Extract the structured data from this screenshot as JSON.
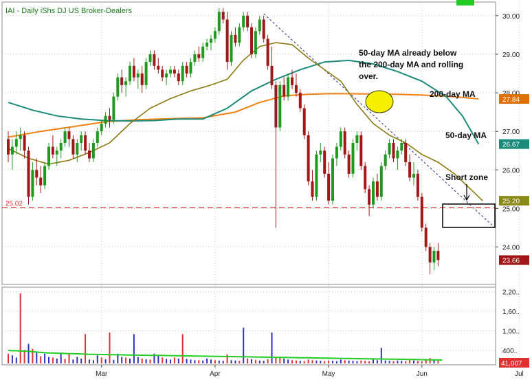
{
  "title": "IAI - Daily  iShs DJ US Broker-Dealers",
  "chart_data": {
    "type": "candlestick",
    "price_axis": {
      "ylim": [
        23.1,
        30.3
      ],
      "ticks": [
        "30.00",
        "29.00",
        "28.00",
        "27.00",
        "26.00",
        "25.00",
        "24.00"
      ],
      "tick_values": [
        30,
        29,
        28,
        27,
        26,
        25,
        24
      ]
    },
    "volume_axis": {
      "ylim": [
        0,
        2300000
      ],
      "ticks": [
        "2,20..",
        "1,60..",
        "1,00..",
        "400.."
      ],
      "tick_values": [
        2200000,
        1600000,
        1000000,
        400000
      ]
    },
    "x_months": [
      "Mar",
      "Apr",
      "May",
      "Jun",
      "Jul"
    ],
    "x_month_bar_index": [
      23,
      51,
      79,
      102,
      126
    ],
    "level_line": {
      "label": "25.02",
      "value": 25.02,
      "color": "#e03030"
    },
    "price_badges": [
      {
        "label": "27.84",
        "value": 27.84,
        "color": "#e07000"
      },
      {
        "label": "26.67",
        "value": 26.67,
        "color": "#1a8a7a"
      },
      {
        "label": "25.20",
        "value": 25.2,
        "color": "#8a8a1a"
      },
      {
        "label": "23.66",
        "value": 23.66,
        "color": "#a01818"
      }
    ],
    "volume_badge": {
      "label": "41,007",
      "color": "#e03030"
    },
    "annotations": {
      "note_lines": [
        "50-day MA already below",
        "the 200-day MA and rolling",
        "over."
      ],
      "ma200_label": "200-day MA",
      "ma50_label": "50-day MA",
      "short_zone_label": "Short zone"
    },
    "candles": [
      [
        26.8,
        27.0,
        26.2,
        26.4
      ],
      [
        26.4,
        26.8,
        26.0,
        26.6
      ],
      [
        26.6,
        27.0,
        26.4,
        26.8
      ],
      [
        26.8,
        27.1,
        26.5,
        26.9
      ],
      [
        26.9,
        27.0,
        26.3,
        26.5
      ],
      [
        26.5,
        26.6,
        25.1,
        25.3
      ],
      [
        25.3,
        26.2,
        25.2,
        26.0
      ],
      [
        26.0,
        26.3,
        25.6,
        25.8
      ],
      [
        25.8,
        26.1,
        25.4,
        25.6
      ],
      [
        25.6,
        26.2,
        25.5,
        26.1
      ],
      [
        26.1,
        26.7,
        26.0,
        26.6
      ],
      [
        26.6,
        26.9,
        26.3,
        26.4
      ],
      [
        26.4,
        26.6,
        26.1,
        26.5
      ],
      [
        26.5,
        26.8,
        26.3,
        26.7
      ],
      [
        26.7,
        27.1,
        26.6,
        27.0
      ],
      [
        27.0,
        27.1,
        26.6,
        26.8
      ],
      [
        26.8,
        26.9,
        26.3,
        26.4
      ],
      [
        26.4,
        26.8,
        26.2,
        26.7
      ],
      [
        26.7,
        27.0,
        26.5,
        26.9
      ],
      [
        26.9,
        27.0,
        26.4,
        26.5
      ],
      [
        26.5,
        26.7,
        26.2,
        26.3
      ],
      [
        26.3,
        26.8,
        26.2,
        26.7
      ],
      [
        26.7,
        27.1,
        26.6,
        27.0
      ],
      [
        27.0,
        27.3,
        26.9,
        27.2
      ],
      [
        27.2,
        27.5,
        27.1,
        27.4
      ],
      [
        27.4,
        27.6,
        27.1,
        27.3
      ],
      [
        27.3,
        28.0,
        27.2,
        27.9
      ],
      [
        27.9,
        28.5,
        27.8,
        28.4
      ],
      [
        28.4,
        28.6,
        28.0,
        28.2
      ],
      [
        28.2,
        28.4,
        27.9,
        28.3
      ],
      [
        28.3,
        28.8,
        28.2,
        28.7
      ],
      [
        28.7,
        28.9,
        28.3,
        28.4
      ],
      [
        28.4,
        28.6,
        28.1,
        28.5
      ],
      [
        28.5,
        28.7,
        28.0,
        28.2
      ],
      [
        28.2,
        28.9,
        28.1,
        28.8
      ],
      [
        28.8,
        29.1,
        28.7,
        29.0
      ],
      [
        29.0,
        29.1,
        28.6,
        28.7
      ],
      [
        28.7,
        28.9,
        28.5,
        28.6
      ],
      [
        28.6,
        28.7,
        28.3,
        28.4
      ],
      [
        28.4,
        28.6,
        28.2,
        28.5
      ],
      [
        28.5,
        28.7,
        28.4,
        28.6
      ],
      [
        28.6,
        28.7,
        28.4,
        28.5
      ],
      [
        28.5,
        28.6,
        28.2,
        28.3
      ],
      [
        28.3,
        28.8,
        28.2,
        28.7
      ],
      [
        28.7,
        28.8,
        28.4,
        28.5
      ],
      [
        28.5,
        28.9,
        28.4,
        28.8
      ],
      [
        28.8,
        29.1,
        28.7,
        29.0
      ],
      [
        29.0,
        29.2,
        28.8,
        28.9
      ],
      [
        28.9,
        29.3,
        28.8,
        29.2
      ],
      [
        29.2,
        29.4,
        29.1,
        29.3
      ],
      [
        29.3,
        29.5,
        29.1,
        29.4
      ],
      [
        29.4,
        29.7,
        29.3,
        29.6
      ],
      [
        29.6,
        30.2,
        29.5,
        30.1
      ],
      [
        30.1,
        30.2,
        29.8,
        29.9
      ],
      [
        29.9,
        30.1,
        28.6,
        28.8
      ],
      [
        28.8,
        29.6,
        28.7,
        29.5
      ],
      [
        29.5,
        29.7,
        29.2,
        29.3
      ],
      [
        29.3,
        29.8,
        29.2,
        29.7
      ],
      [
        29.7,
        30.1,
        29.6,
        30.0
      ],
      [
        30.0,
        30.1,
        29.6,
        29.7
      ],
      [
        29.7,
        29.8,
        28.9,
        29.0
      ],
      [
        29.0,
        29.7,
        28.9,
        29.6
      ],
      [
        29.6,
        30.0,
        29.5,
        29.9
      ],
      [
        29.9,
        30.0,
        29.3,
        29.4
      ],
      [
        29.4,
        29.5,
        28.6,
        28.7
      ],
      [
        28.7,
        29.2,
        28.1,
        28.2
      ],
      [
        28.2,
        28.3,
        24.5,
        27.1
      ],
      [
        27.1,
        28.3,
        27.0,
        28.2
      ],
      [
        28.2,
        28.4,
        27.8,
        27.9
      ],
      [
        27.9,
        28.5,
        27.8,
        28.4
      ],
      [
        28.4,
        28.6,
        28.1,
        28.2
      ],
      [
        28.2,
        28.5,
        27.9,
        28.0
      ],
      [
        28.0,
        28.1,
        27.5,
        27.6
      ],
      [
        27.6,
        27.7,
        26.8,
        26.9
      ],
      [
        26.9,
        27.0,
        25.6,
        25.7
      ],
      [
        25.7,
        26.0,
        25.2,
        25.3
      ],
      [
        25.3,
        26.5,
        25.2,
        26.4
      ],
      [
        26.4,
        26.7,
        26.2,
        26.5
      ],
      [
        26.5,
        26.6,
        25.8,
        25.9
      ],
      [
        25.9,
        26.2,
        25.1,
        25.2
      ],
      [
        25.2,
        26.4,
        25.1,
        26.3
      ],
      [
        26.3,
        26.7,
        26.1,
        26.6
      ],
      [
        26.6,
        27.1,
        26.5,
        27.0
      ],
      [
        27.0,
        27.1,
        26.3,
        26.4
      ],
      [
        26.4,
        26.5,
        25.8,
        25.9
      ],
      [
        25.9,
        26.8,
        25.8,
        26.7
      ],
      [
        26.7,
        27.0,
        26.5,
        26.9
      ],
      [
        26.9,
        27.0,
        26.0,
        26.1
      ],
      [
        26.1,
        26.2,
        25.4,
        25.5
      ],
      [
        25.5,
        25.6,
        24.8,
        25.1
      ],
      [
        25.1,
        25.8,
        25.0,
        25.7
      ],
      [
        25.7,
        25.9,
        25.2,
        25.3
      ],
      [
        25.3,
        26.2,
        25.2,
        26.1
      ],
      [
        26.1,
        26.5,
        26.0,
        26.4
      ],
      [
        26.4,
        26.8,
        26.3,
        26.7
      ],
      [
        26.7,
        26.8,
        26.2,
        26.3
      ],
      [
        26.3,
        26.6,
        26.0,
        26.5
      ],
      [
        26.5,
        26.8,
        26.4,
        26.7
      ],
      [
        26.7,
        26.8,
        26.1,
        26.2
      ],
      [
        26.2,
        26.4,
        25.7,
        25.8
      ],
      [
        25.8,
        26.2,
        25.6,
        25.9
      ],
      [
        25.9,
        26.0,
        25.2,
        25.3
      ],
      [
        25.3,
        25.4,
        24.4,
        24.5
      ],
      [
        24.5,
        24.6,
        23.9,
        24.0
      ],
      [
        24.0,
        24.1,
        23.3,
        23.6
      ],
      [
        23.6,
        24.0,
        23.4,
        23.9
      ],
      [
        23.9,
        24.1,
        23.5,
        23.66
      ]
    ],
    "volume": [
      [
        300000,
        "#e03030"
      ],
      [
        250000,
        "#3030c0"
      ],
      [
        180000,
        "#3030c0"
      ],
      [
        2150000,
        "#e03030"
      ],
      [
        420000,
        "#e03030"
      ],
      [
        600000,
        "#3030c0"
      ],
      [
        450000,
        "#e03030"
      ],
      [
        350000,
        "#3030c0"
      ],
      [
        220000,
        "#e03030"
      ],
      [
        300000,
        "#3030c0"
      ],
      [
        200000,
        "#3030c0"
      ],
      [
        180000,
        "#e03030"
      ],
      [
        150000,
        "#3030c0"
      ],
      [
        330000,
        "#3030c0"
      ],
      [
        140000,
        "#e03030"
      ],
      [
        300000,
        "#e03030"
      ],
      [
        120000,
        "#3030c0"
      ],
      [
        200000,
        "#3030c0"
      ],
      [
        150000,
        "#3030c0"
      ],
      [
        900000,
        "#e03030"
      ],
      [
        120000,
        "#3030c0"
      ],
      [
        100000,
        "#3030c0"
      ],
      [
        250000,
        "#3030c0"
      ],
      [
        180000,
        "#e03030"
      ],
      [
        130000,
        "#3030c0"
      ],
      [
        950000,
        "#e03030"
      ],
      [
        110000,
        "#3030c0"
      ],
      [
        300000,
        "#3030c0"
      ],
      [
        200000,
        "#3030c0"
      ],
      [
        180000,
        "#e03030"
      ],
      [
        150000,
        "#3030c0"
      ],
      [
        900000,
        "#3030c0"
      ],
      [
        200000,
        "#3030c0"
      ],
      [
        150000,
        "#e03030"
      ],
      [
        130000,
        "#3030c0"
      ],
      [
        120000,
        "#e03030"
      ],
      [
        300000,
        "#3030c0"
      ],
      [
        250000,
        "#3030c0"
      ],
      [
        180000,
        "#e03030"
      ],
      [
        140000,
        "#3030c0"
      ],
      [
        120000,
        "#3030c0"
      ],
      [
        180000,
        "#e03030"
      ],
      [
        150000,
        "#3030c0"
      ],
      [
        900000,
        "#e03030"
      ],
      [
        140000,
        "#3030c0"
      ],
      [
        120000,
        "#3030c0"
      ],
      [
        100000,
        "#3030c0"
      ],
      [
        100000,
        "#e03030"
      ],
      [
        90000,
        "#3030c0"
      ],
      [
        150000,
        "#3030c0"
      ],
      [
        120000,
        "#3030c0"
      ],
      [
        100000,
        "#e03030"
      ],
      [
        90000,
        "#3030c0"
      ],
      [
        80000,
        "#3030c0"
      ],
      [
        280000,
        "#e03030"
      ],
      [
        100000,
        "#3030c0"
      ],
      [
        90000,
        "#3030c0"
      ],
      [
        80000,
        "#e03030"
      ],
      [
        1100000,
        "#3030c0"
      ],
      [
        150000,
        "#e03030"
      ],
      [
        130000,
        "#3030c0"
      ],
      [
        110000,
        "#e03030"
      ],
      [
        90000,
        "#3030c0"
      ],
      [
        80000,
        "#3030c0"
      ],
      [
        130000,
        "#e03030"
      ],
      [
        950000,
        "#3030c0"
      ],
      [
        200000,
        "#e03030"
      ],
      [
        180000,
        "#e03030"
      ],
      [
        150000,
        "#3030c0"
      ],
      [
        120000,
        "#3030c0"
      ],
      [
        100000,
        "#e03030"
      ],
      [
        90000,
        "#e03030"
      ],
      [
        80000,
        "#3030c0"
      ],
      [
        70000,
        "#e03030"
      ],
      [
        120000,
        "#e03030"
      ],
      [
        100000,
        "#e03030"
      ],
      [
        90000,
        "#3030c0"
      ],
      [
        80000,
        "#3030c0"
      ],
      [
        70000,
        "#e03030"
      ],
      [
        90000,
        "#e03030"
      ],
      [
        80000,
        "#3030c0"
      ],
      [
        70000,
        "#3030c0"
      ],
      [
        120000,
        "#3030c0"
      ],
      [
        100000,
        "#e03030"
      ],
      [
        90000,
        "#3030c0"
      ],
      [
        80000,
        "#3030c0"
      ],
      [
        70000,
        "#3030c0"
      ],
      [
        90000,
        "#e03030"
      ],
      [
        80000,
        "#e03030"
      ],
      [
        70000,
        "#e03030"
      ],
      [
        120000,
        "#3030c0"
      ],
      [
        100000,
        "#3030c0"
      ],
      [
        480000,
        "#3030c0"
      ],
      [
        90000,
        "#3030c0"
      ],
      [
        80000,
        "#3030c0"
      ],
      [
        70000,
        "#e03030"
      ],
      [
        90000,
        "#3030c0"
      ],
      [
        80000,
        "#3030c0"
      ],
      [
        70000,
        "#e03030"
      ],
      [
        100000,
        "#e03030"
      ],
      [
        90000,
        "#3030c0"
      ],
      [
        80000,
        "#e03030"
      ],
      [
        70000,
        "#e03030"
      ],
      [
        130000,
        "#e03030"
      ],
      [
        160000,
        "#e03030"
      ],
      [
        100000,
        "#3030c0"
      ],
      [
        80000,
        "#e03030"
      ]
    ],
    "volume_ma": [
      400000,
      390000,
      390000,
      380000,
      380000,
      370000,
      360000,
      350000,
      340000,
      330000,
      320000,
      320000,
      315000,
      310000,
      305000,
      300000,
      300000,
      295000,
      290000,
      285000,
      280000,
      278000,
      276000,
      274000,
      272000,
      270000,
      268000,
      266000,
      264000,
      262000,
      260000,
      258000,
      256000,
      254000,
      252000,
      250000,
      248000,
      246000,
      244000,
      242000,
      240000,
      238000,
      236000,
      234000,
      232000,
      230000,
      228000,
      226000,
      224000,
      222000,
      220000,
      218000,
      216000,
      214000,
      212000,
      210000,
      208000,
      206000,
      204000,
      202000,
      200000,
      198000,
      196000,
      194000,
      192000,
      190000,
      188000,
      186000,
      184000,
      182000,
      180000,
      178000,
      176000,
      174000,
      172000,
      170000,
      168000,
      166000,
      164000,
      162000,
      160000,
      158000,
      156000,
      154000,
      152000,
      150000,
      148000,
      146000,
      144000,
      142000,
      140000,
      138000,
      136000,
      134000,
      132000,
      130000,
      128000,
      126000,
      124000,
      122000,
      120000,
      118000,
      116000,
      114000,
      112000,
      110000,
      108000,
      106000
    ],
    "ma200": [
      [
        0,
        26.85
      ],
      [
        8,
        27.0
      ],
      [
        16,
        27.12
      ],
      [
        24,
        27.25
      ],
      [
        32,
        27.3
      ],
      [
        40,
        27.33
      ],
      [
        48,
        27.35
      ],
      [
        56,
        27.5
      ],
      [
        62,
        27.75
      ],
      [
        68,
        27.92
      ],
      [
        74,
        27.96
      ],
      [
        80,
        27.98
      ],
      [
        88,
        27.97
      ],
      [
        96,
        27.96
      ],
      [
        102,
        27.94
      ],
      [
        110,
        27.9
      ],
      [
        116,
        27.84
      ]
    ],
    "ma50": [
      [
        0,
        27.75
      ],
      [
        6,
        27.55
      ],
      [
        12,
        27.4
      ],
      [
        18,
        27.32
      ],
      [
        24,
        27.28
      ],
      [
        30,
        27.27
      ],
      [
        36,
        27.28
      ],
      [
        42,
        27.32
      ],
      [
        48,
        27.32
      ],
      [
        54,
        27.6
      ],
      [
        60,
        28.05
      ],
      [
        66,
        28.35
      ],
      [
        72,
        28.6
      ],
      [
        78,
        28.8
      ],
      [
        84,
        28.84
      ],
      [
        90,
        28.75
      ],
      [
        96,
        28.55
      ],
      [
        102,
        28.3
      ],
      [
        108,
        27.9
      ],
      [
        112,
        27.4
      ],
      [
        116,
        26.67
      ]
    ],
    "ma20": [
      [
        0,
        26.55
      ],
      [
        5,
        26.3
      ],
      [
        10,
        26.15
      ],
      [
        15,
        26.25
      ],
      [
        20,
        26.45
      ],
      [
        25,
        26.7
      ],
      [
        30,
        27.2
      ],
      [
        35,
        27.6
      ],
      [
        40,
        27.85
      ],
      [
        45,
        28.05
      ],
      [
        50,
        28.2
      ],
      [
        54,
        28.35
      ],
      [
        58,
        28.85
      ],
      [
        62,
        29.2
      ],
      [
        66,
        29.3
      ],
      [
        70,
        29.25
      ],
      [
        74,
        28.9
      ],
      [
        78,
        28.6
      ],
      [
        82,
        28.3
      ],
      [
        86,
        27.7
      ],
      [
        90,
        27.2
      ],
      [
        94,
        26.9
      ],
      [
        98,
        26.7
      ],
      [
        102,
        26.4
      ],
      [
        106,
        26.2
      ],
      [
        110,
        25.9
      ],
      [
        114,
        25.5
      ],
      [
        117,
        25.2
      ]
    ]
  }
}
